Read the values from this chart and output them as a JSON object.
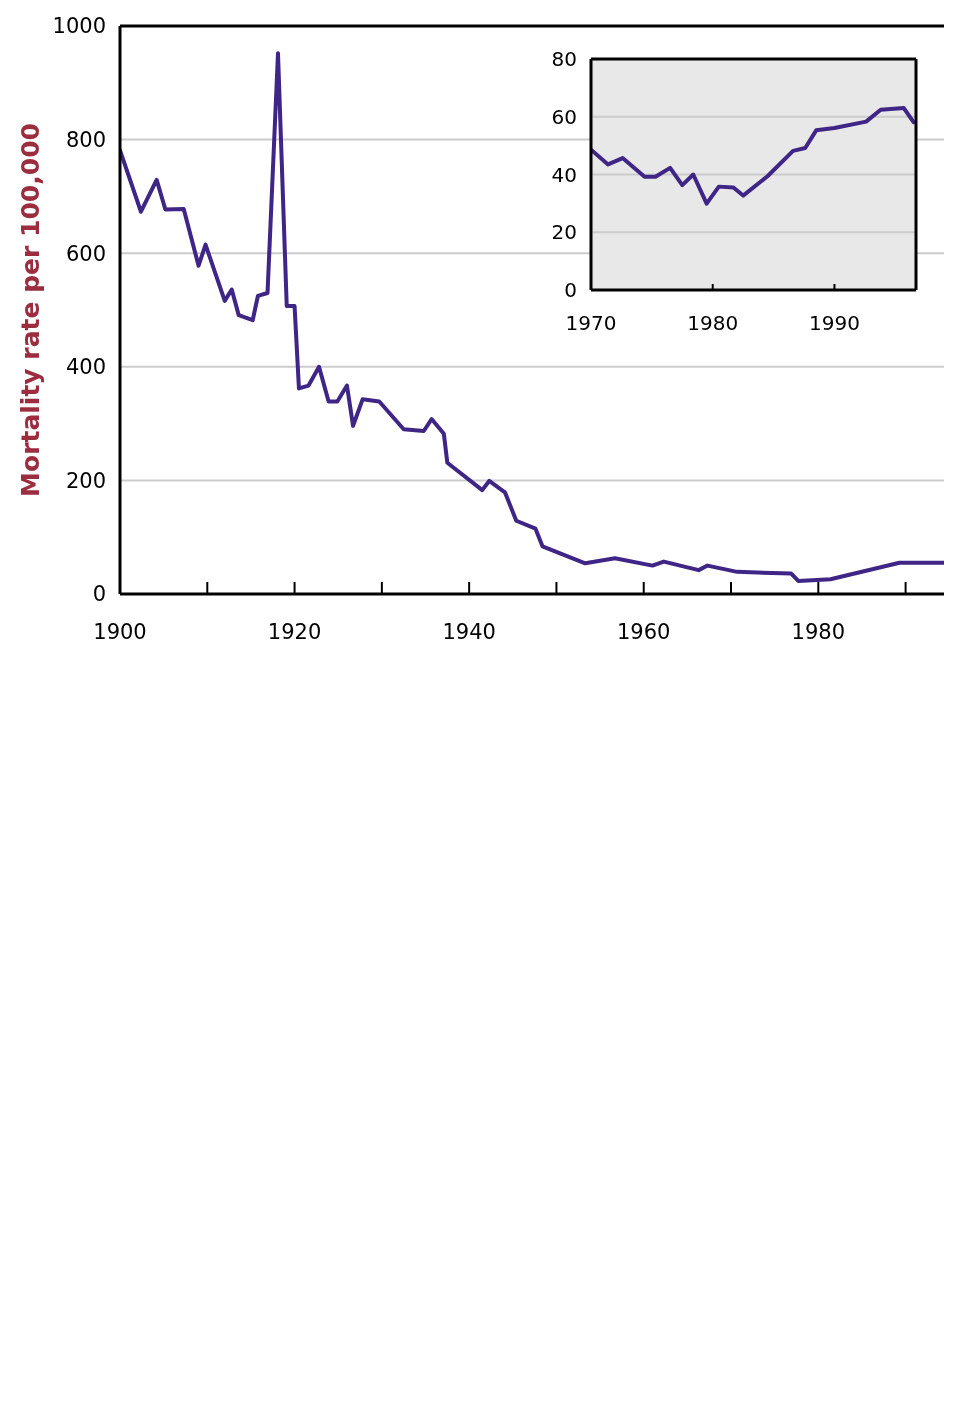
{
  "chart_data": [
    {
      "type": "line",
      "ylabel": "Mortality rate per 100,000",
      "xlim": [
        1900,
        1994.4
      ],
      "ylim": [
        0,
        1000
      ],
      "xticks": [
        1900,
        {
          "value": 1910,
          "label": null
        },
        1920,
        {
          "value": 1930,
          "label": null
        },
        1940,
        {
          "value": 1950,
          "label": null
        },
        1960,
        {
          "value": 1970,
          "label": null
        },
        1980,
        {
          "value": 1990,
          "label": null
        }
      ],
      "yticks": [
        0,
        200,
        400,
        600,
        800,
        1000
      ],
      "grid": "y",
      "x": [
        1900.0,
        1902.4,
        1904.2,
        1905.2,
        1907.3,
        1909.0,
        1909.8,
        1912.0,
        1912.8,
        1913.6,
        1915.2,
        1915.8,
        1916.9,
        1918.1,
        1919.1,
        1920.0,
        1920.5,
        1921.6,
        1922.8,
        1923.9,
        1924.9,
        1926.0,
        1926.7,
        1927.8,
        1929.7,
        1932.5,
        1934.8,
        1935.7,
        1937.1,
        1937.5,
        1941.5,
        1942.3,
        1944.1,
        1945.4,
        1947.6,
        1948.4,
        1953.3,
        1956.7,
        1961.0,
        1962.3,
        1966.3,
        1967.3,
        1970.7,
        1976.9,
        1977.7,
        1981.4,
        1989.3,
        1994.4
      ],
      "series": [
        {
          "color": "#3f2585",
          "values": [
            781,
            673,
            729,
            677,
            678,
            578,
            615,
            516,
            536,
            491,
            482,
            525,
            530,
            952,
            507,
            507,
            362,
            367,
            400,
            339,
            339,
            367,
            296,
            343,
            339,
            290,
            287,
            308,
            282,
            231,
            183,
            199,
            179,
            129,
            115,
            84,
            54,
            63,
            50,
            57,
            42,
            50,
            39,
            36,
            23,
            26,
            55,
            55
          ]
        }
      ]
    },
    {
      "type": "line",
      "xlim": [
        1970,
        1996.7
      ],
      "ylim": [
        0,
        80
      ],
      "xticks": [
        1970,
        1980,
        1990
      ],
      "yticks": [
        0,
        20,
        40,
        60,
        80
      ],
      "grid": "y",
      "x": [
        1970.0,
        1971.4,
        1972.6,
        1974.4,
        1975.3,
        1976.5,
        1977.5,
        1978.4,
        1979.5,
        1980.5,
        1981.7,
        1982.5,
        1984.5,
        1986.6,
        1987.6,
        1988.5,
        1990.0,
        1992.6,
        1993.8,
        1995.7,
        1996.5
      ],
      "series": [
        {
          "color": "#3f2585",
          "values": [
            48.6,
            43.5,
            45.7,
            39.2,
            39.2,
            42.3,
            36.3,
            40,
            29.9,
            35.8,
            35.5,
            32.7,
            39.4,
            48.2,
            49.2,
            55.3,
            56.1,
            58.3,
            62.4,
            63,
            58.1
          ]
        }
      ]
    }
  ]
}
